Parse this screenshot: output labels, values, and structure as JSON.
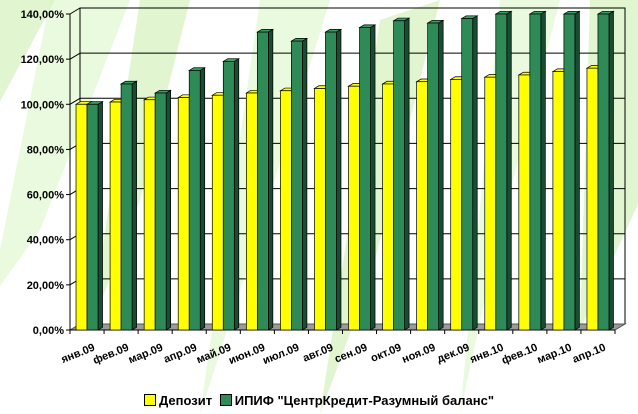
{
  "chart_data": {
    "type": "bar",
    "categories": [
      "янв.09",
      "фев.09",
      "мар.09",
      "апр.09",
      "май.09",
      "июн.09",
      "июл.09",
      "авг.09",
      "сен.09",
      "окт.09",
      "ноя.09",
      "дек.09",
      "янв.10",
      "фев.10",
      "мар.10",
      "апр.10"
    ],
    "series": [
      {
        "name": "Депозит",
        "color": "#ffff00",
        "values": [
          100,
          101,
          102,
          103,
          104,
          105,
          106,
          107,
          108,
          109,
          110,
          111,
          112,
          113,
          114.5,
          116
        ]
      },
      {
        "name": "ИПИФ \"ЦентрКредит-Разумный баланс\"",
        "color": "#2e8b57",
        "values": [
          100,
          109,
          105,
          115,
          119,
          132,
          128,
          132,
          134,
          137,
          136,
          138,
          140,
          140,
          140,
          140
        ]
      }
    ],
    "y_ticks": [
      "0,00%",
      "20,00%",
      "40,00%",
      "60,00%",
      "80,00%",
      "100,00%",
      "120,00%",
      "140,00%"
    ],
    "ylim": [
      0,
      140
    ],
    "grid": true,
    "legend_position": "bottom"
  }
}
